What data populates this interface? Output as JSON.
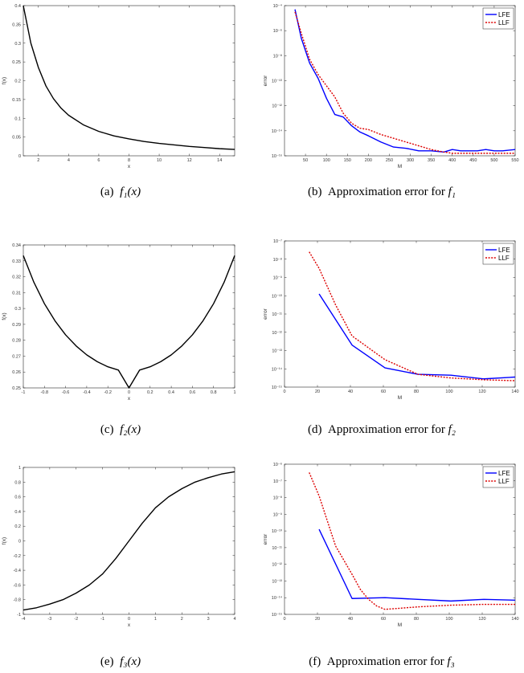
{
  "captions": [
    {
      "label": "(a)",
      "math": "f₁(x)",
      "text": ""
    },
    {
      "label": "(b)",
      "math": "f₁",
      "text": "Approximation error for"
    },
    {
      "label": "(c)",
      "math": "f₂(x)",
      "text": ""
    },
    {
      "label": "(d)",
      "math": "f₂",
      "text": "Approximation error for"
    },
    {
      "label": "(e)",
      "math": "f₃(x)",
      "text": ""
    },
    {
      "label": "(f)",
      "math": "f₃",
      "text": "Approximation error for"
    }
  ],
  "chart_data": [
    {
      "id": "a",
      "type": "line",
      "scale": "linear",
      "xlabel": "x",
      "ylabel": "f(x)",
      "xlim": [
        1,
        15
      ],
      "ylim": [
        0,
        0.4
      ],
      "xticks": [
        2,
        4,
        6,
        8,
        10,
        12,
        14
      ],
      "yticks": [
        0,
        0.05,
        0.1,
        0.15,
        0.2,
        0.25,
        0.3,
        0.35,
        0.4
      ],
      "series": [
        {
          "color": "#000000",
          "dash": "",
          "x": [
            1,
            1.5,
            2,
            2.5,
            3,
            3.5,
            4,
            5,
            6,
            7,
            8,
            9,
            10,
            11,
            12,
            13,
            14,
            15
          ],
          "y": [
            0.4,
            0.3,
            0.235,
            0.186,
            0.152,
            0.127,
            0.108,
            0.082,
            0.065,
            0.053,
            0.045,
            0.038,
            0.033,
            0.029,
            0.025,
            0.022,
            0.019,
            0.017
          ]
        }
      ],
      "legend": []
    },
    {
      "id": "b",
      "type": "line",
      "scale": "log",
      "xlabel": "M",
      "ylabel": "error",
      "xlim": [
        0,
        550
      ],
      "ylim": [
        -16,
        -4
      ],
      "xticks": [
        50,
        100,
        150,
        200,
        250,
        300,
        350,
        400,
        450,
        500,
        550
      ],
      "yticks": [
        -16,
        -14,
        -12,
        -10,
        -8,
        -6,
        -4
      ],
      "series": [
        {
          "name": "LFE",
          "color": "#0000ff",
          "dash": "",
          "x": [
            25,
            40,
            60,
            80,
            100,
            120,
            140,
            160,
            180,
            200,
            230,
            260,
            290,
            320,
            350,
            380,
            400,
            420,
            440,
            460,
            480,
            500,
            520,
            550
          ],
          "y": [
            -4.3,
            -6.6,
            -8.6,
            -9.8,
            -11.4,
            -12.7,
            -12.9,
            -13.6,
            -14.1,
            -14.4,
            -14.9,
            -15.3,
            -15.4,
            -15.6,
            -15.6,
            -15.7,
            -15.5,
            -15.6,
            -15.6,
            -15.6,
            -15.5,
            -15.6,
            -15.6,
            -15.5
          ]
        },
        {
          "name": "LLF",
          "color": "#dd0000",
          "dash": "2,1.6",
          "x": [
            25,
            40,
            60,
            80,
            100,
            120,
            140,
            160,
            180,
            200,
            230,
            260,
            290,
            320,
            350,
            380,
            400,
            420,
            440,
            460,
            480,
            500,
            520,
            550
          ],
          "y": [
            -4.5,
            -6.2,
            -8.3,
            -9.5,
            -10.4,
            -11.3,
            -12.6,
            -13.4,
            -13.8,
            -13.9,
            -14.3,
            -14.6,
            -14.9,
            -15.2,
            -15.5,
            -15.7,
            -15.8,
            -15.8,
            -15.8,
            -15.8,
            -15.8,
            -15.8,
            -15.8,
            -15.8
          ]
        }
      ],
      "legend": [
        "LFE",
        "LLF"
      ]
    },
    {
      "id": "c",
      "type": "line",
      "scale": "linear",
      "xlabel": "x",
      "ylabel": "f(x)",
      "xlim": [
        -1,
        1
      ],
      "ylim": [
        0.25,
        0.34
      ],
      "xticks": [
        -1,
        -0.8,
        -0.6,
        -0.4,
        -0.2,
        0,
        0.2,
        0.4,
        0.6,
        0.8,
        1
      ],
      "yticks": [
        0.25,
        0.26,
        0.27,
        0.28,
        0.29,
        0.3,
        0.31,
        0.32,
        0.33,
        0.34
      ],
      "series": [
        {
          "color": "#000000",
          "dash": "",
          "x": [
            -1,
            -0.9,
            -0.8,
            -0.7,
            -0.6,
            -0.5,
            -0.4,
            -0.3,
            -0.2,
            -0.1,
            0,
            0.1,
            0.2,
            0.3,
            0.4,
            0.5,
            0.6,
            0.7,
            0.8,
            0.9,
            1
          ],
          "y": [
            0.3333,
            0.3165,
            0.303,
            0.2922,
            0.2834,
            0.2764,
            0.2708,
            0.2665,
            0.2633,
            0.2612,
            0.25,
            0.2612,
            0.2633,
            0.2665,
            0.2708,
            0.2764,
            0.2834,
            0.2922,
            0.303,
            0.3165,
            0.3333
          ]
        }
      ],
      "legend": []
    },
    {
      "id": "d",
      "type": "line",
      "scale": "log",
      "xlabel": "M",
      "ylabel": "error",
      "xlim": [
        0,
        140
      ],
      "ylim": [
        -15,
        -7
      ],
      "xticks": [
        0,
        20,
        40,
        60,
        80,
        100,
        120,
        140
      ],
      "yticks": [
        -15,
        -14,
        -13,
        -12,
        -11,
        -10,
        -9,
        -8,
        -7
      ],
      "series": [
        {
          "name": "LFE",
          "color": "#0000ff",
          "dash": "",
          "x": [
            21,
            41,
            61,
            81,
            101,
            121,
            140
          ],
          "y": [
            -9.9,
            -12.7,
            -13.95,
            -14.3,
            -14.35,
            -14.55,
            -14.45
          ]
        },
        {
          "name": "LLF",
          "color": "#dd0000",
          "dash": "2,1.6",
          "x": [
            15,
            21,
            31,
            41,
            61,
            81,
            101,
            121,
            140
          ],
          "y": [
            -7.6,
            -8.5,
            -10.5,
            -12.2,
            -13.5,
            -14.3,
            -14.5,
            -14.6,
            -14.65
          ]
        }
      ],
      "legend": [
        "LFE",
        "LLF"
      ]
    },
    {
      "id": "e",
      "type": "line",
      "scale": "linear",
      "xlabel": "x",
      "ylabel": "f(x)",
      "xlim": [
        -4,
        4
      ],
      "ylim": [
        -1,
        1
      ],
      "xticks": [
        -4,
        -3,
        -2,
        -1,
        0,
        1,
        2,
        3,
        4
      ],
      "yticks": [
        -1,
        -0.8,
        -0.6,
        -0.4,
        -0.2,
        0,
        0.2,
        0.4,
        0.6,
        0.8,
        1
      ],
      "series": [
        {
          "color": "#000000",
          "dash": "",
          "x": [
            -4,
            -3.5,
            -3,
            -2.5,
            -2,
            -1.5,
            -1,
            -0.5,
            0,
            0.5,
            1,
            1.5,
            2,
            2.5,
            3,
            3.5,
            4
          ],
          "y": [
            -0.94,
            -0.91,
            -0.86,
            -0.8,
            -0.71,
            -0.6,
            -0.45,
            -0.24,
            0,
            0.24,
            0.45,
            0.6,
            0.71,
            0.8,
            0.86,
            0.91,
            0.94
          ]
        }
      ],
      "legend": []
    },
    {
      "id": "f",
      "type": "line",
      "scale": "log",
      "xlabel": "M",
      "ylabel": "error",
      "xlim": [
        0,
        140
      ],
      "ylim": [
        -15,
        -6
      ],
      "xticks": [
        0,
        20,
        40,
        60,
        80,
        100,
        120,
        140
      ],
      "yticks": [
        -15,
        -14,
        -13,
        -12,
        -11,
        -10,
        -9,
        -8,
        -7,
        -6
      ],
      "series": [
        {
          "name": "LFE",
          "color": "#0000ff",
          "dash": "",
          "x": [
            21,
            41,
            61,
            81,
            101,
            121,
            140
          ],
          "y": [
            -9.9,
            -14.05,
            -14.0,
            -14.1,
            -14.2,
            -14.1,
            -14.15
          ]
        },
        {
          "name": "LLF",
          "color": "#dd0000",
          "dash": "2,1.6",
          "x": [
            15,
            21,
            31,
            41,
            46,
            51,
            56,
            61,
            81,
            101,
            121,
            140
          ],
          "y": [
            -6.5,
            -7.9,
            -10.9,
            -12.6,
            -13.5,
            -14.1,
            -14.5,
            -14.7,
            -14.55,
            -14.45,
            -14.4,
            -14.4
          ]
        }
      ],
      "legend": [
        "LFE",
        "LLF"
      ]
    }
  ]
}
